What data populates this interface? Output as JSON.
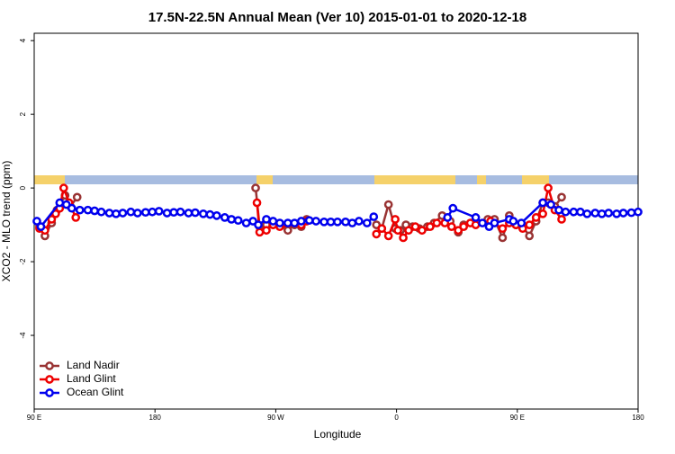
{
  "chart_data": {
    "type": "line",
    "title": "17.5N-22.5N Annual Mean (Ver 10)   2015-01-01 to 2020-12-18",
    "x_label": "Longitude",
    "y_label": "XCO2 - MLO trend (ppm)",
    "xlim": [
      90,
      540
    ],
    "xticks": [
      {
        "value": 90,
        "label": "90 E"
      },
      180,
      {
        "value": 270,
        "label": "90 W"
      },
      {
        "value": 360,
        "label": "0"
      },
      {
        "value": 450,
        "label": "90 E"
      },
      {
        "value": 540,
        "label": "180"
      }
    ],
    "ylim": [
      -6.0,
      4.2
    ],
    "yticks": [
      -4,
      -2,
      0,
      2,
      4
    ],
    "legend": "bottom-left",
    "series": [
      {
        "name": "Land Nadir",
        "color": "#993333",
        "x": [
          94,
          98,
          103,
          107,
          113,
          117,
          122,
          200,
          255,
          258,
          263,
          268,
          273,
          279,
          284,
          289,
          293,
          320,
          345,
          349,
          354,
          359,
          363,
          367,
          372,
          377,
          383,
          388,
          394,
          400,
          406,
          410,
          420,
          428,
          433,
          439,
          444,
          449,
          454,
          459,
          464,
          469,
          473,
          478,
          483
        ],
        "values": [
          -1.05,
          -1.3,
          -0.95,
          -0.6,
          -0.2,
          -0.5,
          -0.25,
          null,
          0.0,
          -1.05,
          -1.0,
          -0.95,
          -1.0,
          -1.15,
          -1.0,
          -1.05,
          -0.85,
          null,
          -1.0,
          -1.1,
          -0.45,
          -1.1,
          -1.15,
          -1.0,
          -1.05,
          -1.1,
          -1.05,
          -0.95,
          -0.75,
          -0.9,
          -1.2,
          -1.0,
          null,
          -0.85,
          -0.85,
          -1.35,
          -0.75,
          -1.0,
          -1.05,
          -1.3,
          -0.9,
          -0.4,
          -0.4,
          -0.5,
          -0.25
        ]
      },
      {
        "name": "Land Glint",
        "color": "#ee0000",
        "x": [
          94,
          98,
          103,
          106,
          109,
          112,
          116,
          121,
          200,
          256,
          258,
          263,
          268,
          273,
          289,
          293,
          320,
          345,
          349,
          354,
          359,
          361,
          365,
          369,
          374,
          379,
          385,
          390,
          396,
          401,
          406,
          410,
          415,
          419,
          425,
          430,
          439,
          444,
          449,
          454,
          459,
          464,
          469,
          473,
          478,
          483
        ],
        "values": [
          -1.1,
          -1.15,
          -0.85,
          -0.7,
          -0.55,
          0.0,
          -0.4,
          -0.8,
          null,
          -0.4,
          -1.2,
          -1.15,
          -1.0,
          -1.05,
          -1.0,
          -0.9,
          null,
          -1.25,
          -1.1,
          -1.3,
          -0.85,
          -1.15,
          -1.35,
          -1.15,
          -1.05,
          -1.15,
          -1.05,
          -0.95,
          -0.95,
          -1.05,
          -1.15,
          -1.05,
          -0.95,
          -1.0,
          null,
          -0.9,
          -1.1,
          -0.95,
          -1.0,
          -1.1,
          -1.0,
          -0.8,
          -0.7,
          0.0,
          -0.6,
          -0.85
        ]
      },
      {
        "name": "Ocean Glint",
        "color": "#0000ee",
        "x": [
          92,
          95,
          109,
          114,
          118,
          124,
          130,
          135,
          140,
          146,
          151,
          156,
          162,
          167,
          173,
          178,
          183,
          189,
          194,
          199,
          205,
          210,
          216,
          221,
          226,
          232,
          237,
          242,
          248,
          253,
          257,
          263,
          268,
          273,
          279,
          284,
          289,
          295,
          300,
          306,
          311,
          316,
          322,
          327,
          332,
          338,
          343,
          370,
          398,
          402,
          419,
          424,
          429,
          433,
          444,
          447,
          453,
          469,
          475,
          481,
          486,
          492,
          497,
          502,
          508,
          513,
          518,
          524,
          529,
          535,
          540
        ],
        "values": [
          -0.9,
          -1.05,
          -0.4,
          -0.45,
          -0.55,
          -0.6,
          -0.6,
          -0.62,
          -0.65,
          -0.68,
          -0.7,
          -0.68,
          -0.65,
          -0.68,
          -0.66,
          -0.65,
          -0.63,
          -0.68,
          -0.66,
          -0.65,
          -0.68,
          -0.67,
          -0.7,
          -0.72,
          -0.75,
          -0.8,
          -0.85,
          -0.88,
          -0.95,
          -0.9,
          -1.0,
          -0.85,
          -0.9,
          -0.95,
          -0.95,
          -0.95,
          -0.9,
          -0.88,
          -0.9,
          -0.92,
          -0.92,
          -0.92,
          -0.92,
          -0.95,
          -0.9,
          -0.95,
          -0.78,
          null,
          -0.8,
          -0.55,
          -0.8,
          -0.95,
          -1.05,
          -0.95,
          -0.85,
          -0.9,
          -0.95,
          -0.4,
          -0.45,
          -0.6,
          -0.65,
          -0.65,
          -0.65,
          -0.7,
          -0.68,
          -0.7,
          -0.68,
          -0.7,
          -0.68,
          -0.67,
          -0.65
        ]
      }
    ]
  }
}
